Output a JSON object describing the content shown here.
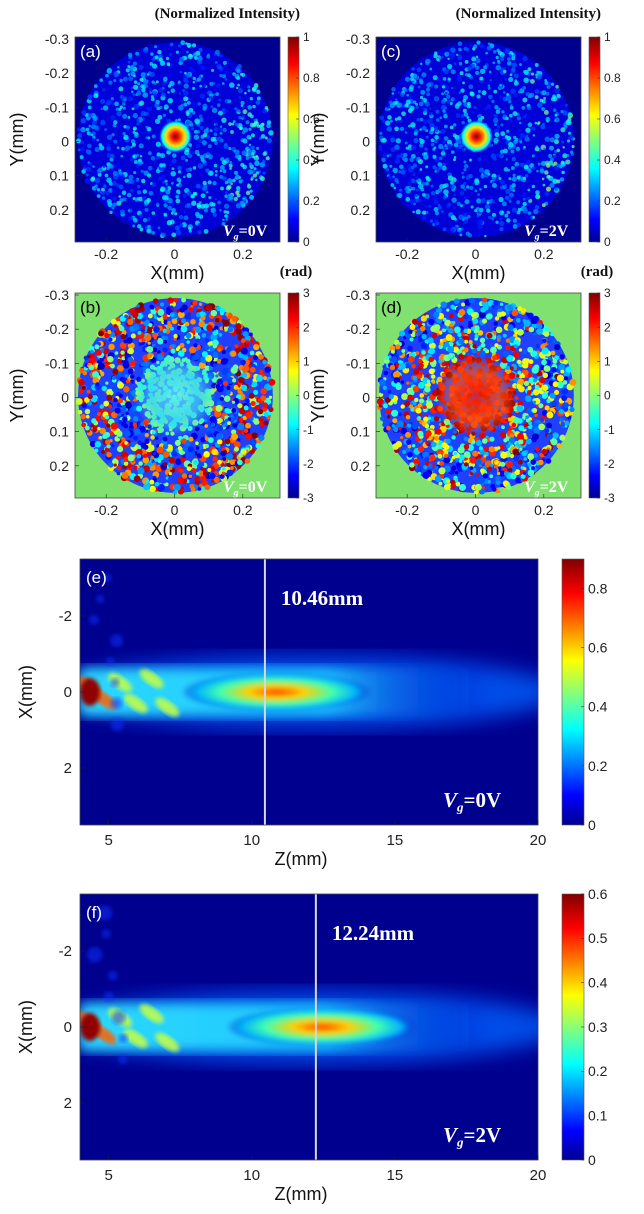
{
  "chart_data": [
    {
      "panel": "(a)",
      "type": "heatmap",
      "title": "(Normalized Intensity)",
      "xlabel": "X(mm)",
      "ylabel": "Y(mm)",
      "xticks": [
        "-0.2",
        "0",
        "0.2"
      ],
      "yticks": [
        "-0.3",
        "-0.2",
        "-0.1",
        "0",
        "0.1",
        "0.2"
      ],
      "colorbar_ticks": [
        "1",
        "0.8",
        "0.6",
        "0.4",
        "0.2",
        "0"
      ],
      "colorbar_range": [
        0,
        1
      ],
      "annotation": {
        "italic": "V",
        "sub": "g",
        "rest": "=0V"
      },
      "description_values": {
        "peak_x": 0,
        "peak_y": 0,
        "peak": 1
      }
    },
    {
      "panel": "(b)",
      "type": "heatmap",
      "title": "(rad)",
      "xlabel": "X(mm)",
      "ylabel": "Y(mm)",
      "xticks": [
        "-0.2",
        "0",
        "0.2"
      ],
      "yticks": [
        "-0.3",
        "-0.2",
        "-0.1",
        "0",
        "0.1",
        "0.2"
      ],
      "colorbar_ticks": [
        "3",
        "2",
        "1",
        "0",
        "-1",
        "-2",
        "-3"
      ],
      "colorbar_range": [
        -3,
        3
      ],
      "annotation": {
        "italic": "V",
        "sub": "g",
        "rest": "=0V"
      }
    },
    {
      "panel": "(c)",
      "type": "heatmap",
      "title": "(Normalized Intensity)",
      "xlabel": "X(mm)",
      "ylabel": "Y(mm)",
      "xticks": [
        "-0.2",
        "0",
        "0.2"
      ],
      "yticks": [
        "-0.3",
        "-0.2",
        "-0.1",
        "0",
        "0.1",
        "0.2"
      ],
      "colorbar_ticks": [
        "1",
        "0.8",
        "0.6",
        "0.4",
        "0.2",
        "0"
      ],
      "colorbar_range": [
        0,
        1
      ],
      "annotation": {
        "italic": "V",
        "sub": "g",
        "rest": "=2V"
      }
    },
    {
      "panel": "(d)",
      "type": "heatmap",
      "title": "(rad)",
      "xlabel": "X(mm)",
      "ylabel": "Y(mm)",
      "xticks": [
        "-0.2",
        "0",
        "0.2"
      ],
      "yticks": [
        "-0.3",
        "-0.2",
        "-0.1",
        "0",
        "0.1",
        "0.2"
      ],
      "colorbar_ticks": [
        "3",
        "2",
        "1",
        "0",
        "-1",
        "-2",
        "-3"
      ],
      "colorbar_range": [
        -3,
        3
      ],
      "annotation": {
        "italic": "V",
        "sub": "g",
        "rest": "=2V"
      }
    },
    {
      "panel": "(e)",
      "type": "heatmap",
      "xlabel": "Z(mm)",
      "ylabel": "X(mm)",
      "xticks": [
        "5",
        "10",
        "15",
        "20"
      ],
      "yticks": [
        "-2",
        "0",
        "2"
      ],
      "xlim": [
        4,
        20
      ],
      "ylim": [
        -3.5,
        3.5
      ],
      "colorbar_ticks": [
        "0.8",
        "0.6",
        "0.4",
        "0.2",
        "0"
      ],
      "colorbar_range": [
        0,
        0.9
      ],
      "focus_line_z": 10.46,
      "focus_label": "10.46mm",
      "annotation": {
        "italic": "V",
        "sub": "g",
        "rest": "=0V"
      }
    },
    {
      "panel": "(f)",
      "type": "heatmap",
      "xlabel": "Z(mm)",
      "ylabel": "X(mm)",
      "xticks": [
        "5",
        "10",
        "15",
        "20"
      ],
      "yticks": [
        "-2",
        "0",
        "2"
      ],
      "xlim": [
        4,
        20
      ],
      "ylim": [
        -3.5,
        3.5
      ],
      "colorbar_ticks": [
        "0.6",
        "0.5",
        "0.4",
        "0.3",
        "0.2",
        "0.1",
        "0"
      ],
      "colorbar_range": [
        0,
        0.6
      ],
      "focus_line_z": 12.24,
      "focus_label": "12.24mm",
      "annotation": {
        "italic": "V",
        "sub": "g",
        "rest": "=2V"
      }
    }
  ],
  "colors": {
    "jet_dark_blue": "#00008f",
    "blue": "#0000ff",
    "cyan": "#00ffff",
    "yellow": "#ffff00",
    "red": "#ff0000",
    "dark_red": "#800000",
    "phase_background": "#80e070",
    "focus_line": "#d8d8d8"
  }
}
